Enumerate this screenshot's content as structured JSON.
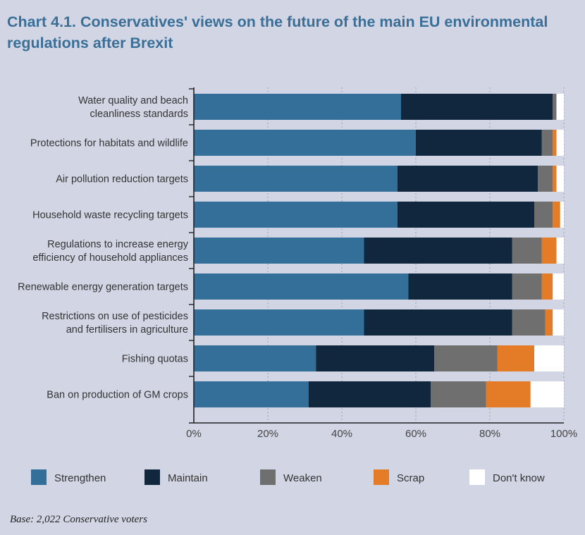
{
  "chart_data": {
    "type": "bar",
    "orientation": "horizontal",
    "stacked": true,
    "title": "Chart 4.1. Conservatives' views on the future of the main EU environmental regulations after Brexit",
    "categories": [
      [
        "Water quality and beach",
        "cleanliness standards"
      ],
      [
        "Protections for habitats and wildlife"
      ],
      [
        "Air pollution reduction targets"
      ],
      [
        "Household waste recycling targets"
      ],
      [
        "Regulations to increase energy",
        "efficiency of household appliances"
      ],
      [
        "Renewable energy generation targets"
      ],
      [
        "Restrictions on use of pesticides",
        "and fertilisers in agriculture"
      ],
      [
        "Fishing quotas"
      ],
      [
        "Ban on production of GM crops"
      ]
    ],
    "series": [
      {
        "name": "Strengthen",
        "color": "#336f98",
        "values": [
          56,
          60,
          55,
          55,
          46,
          58,
          46,
          33,
          31
        ]
      },
      {
        "name": "Maintain",
        "color": "#10273d",
        "values": [
          41,
          34,
          38,
          37,
          40,
          28,
          40,
          32,
          33
        ]
      },
      {
        "name": "Weaken",
        "color": "#6f6f6f",
        "values": [
          1,
          3,
          4,
          5,
          8,
          8,
          9,
          17,
          15
        ]
      },
      {
        "name": "Scrap",
        "color": "#e47b26",
        "values": [
          0,
          1,
          1,
          2,
          4,
          3,
          2,
          10,
          12
        ]
      },
      {
        "name": "Don't know",
        "color": "#ffffff",
        "values": [
          2,
          2,
          2,
          1,
          2,
          3,
          3,
          8,
          9
        ]
      }
    ],
    "xlim": [
      0,
      100
    ],
    "xticks": [
      "0%",
      "20%",
      "40%",
      "60%",
      "80%",
      "100%"
    ],
    "grid": true,
    "legend": "bottom",
    "base_note": "Base: 2,022 Conservative voters"
  }
}
